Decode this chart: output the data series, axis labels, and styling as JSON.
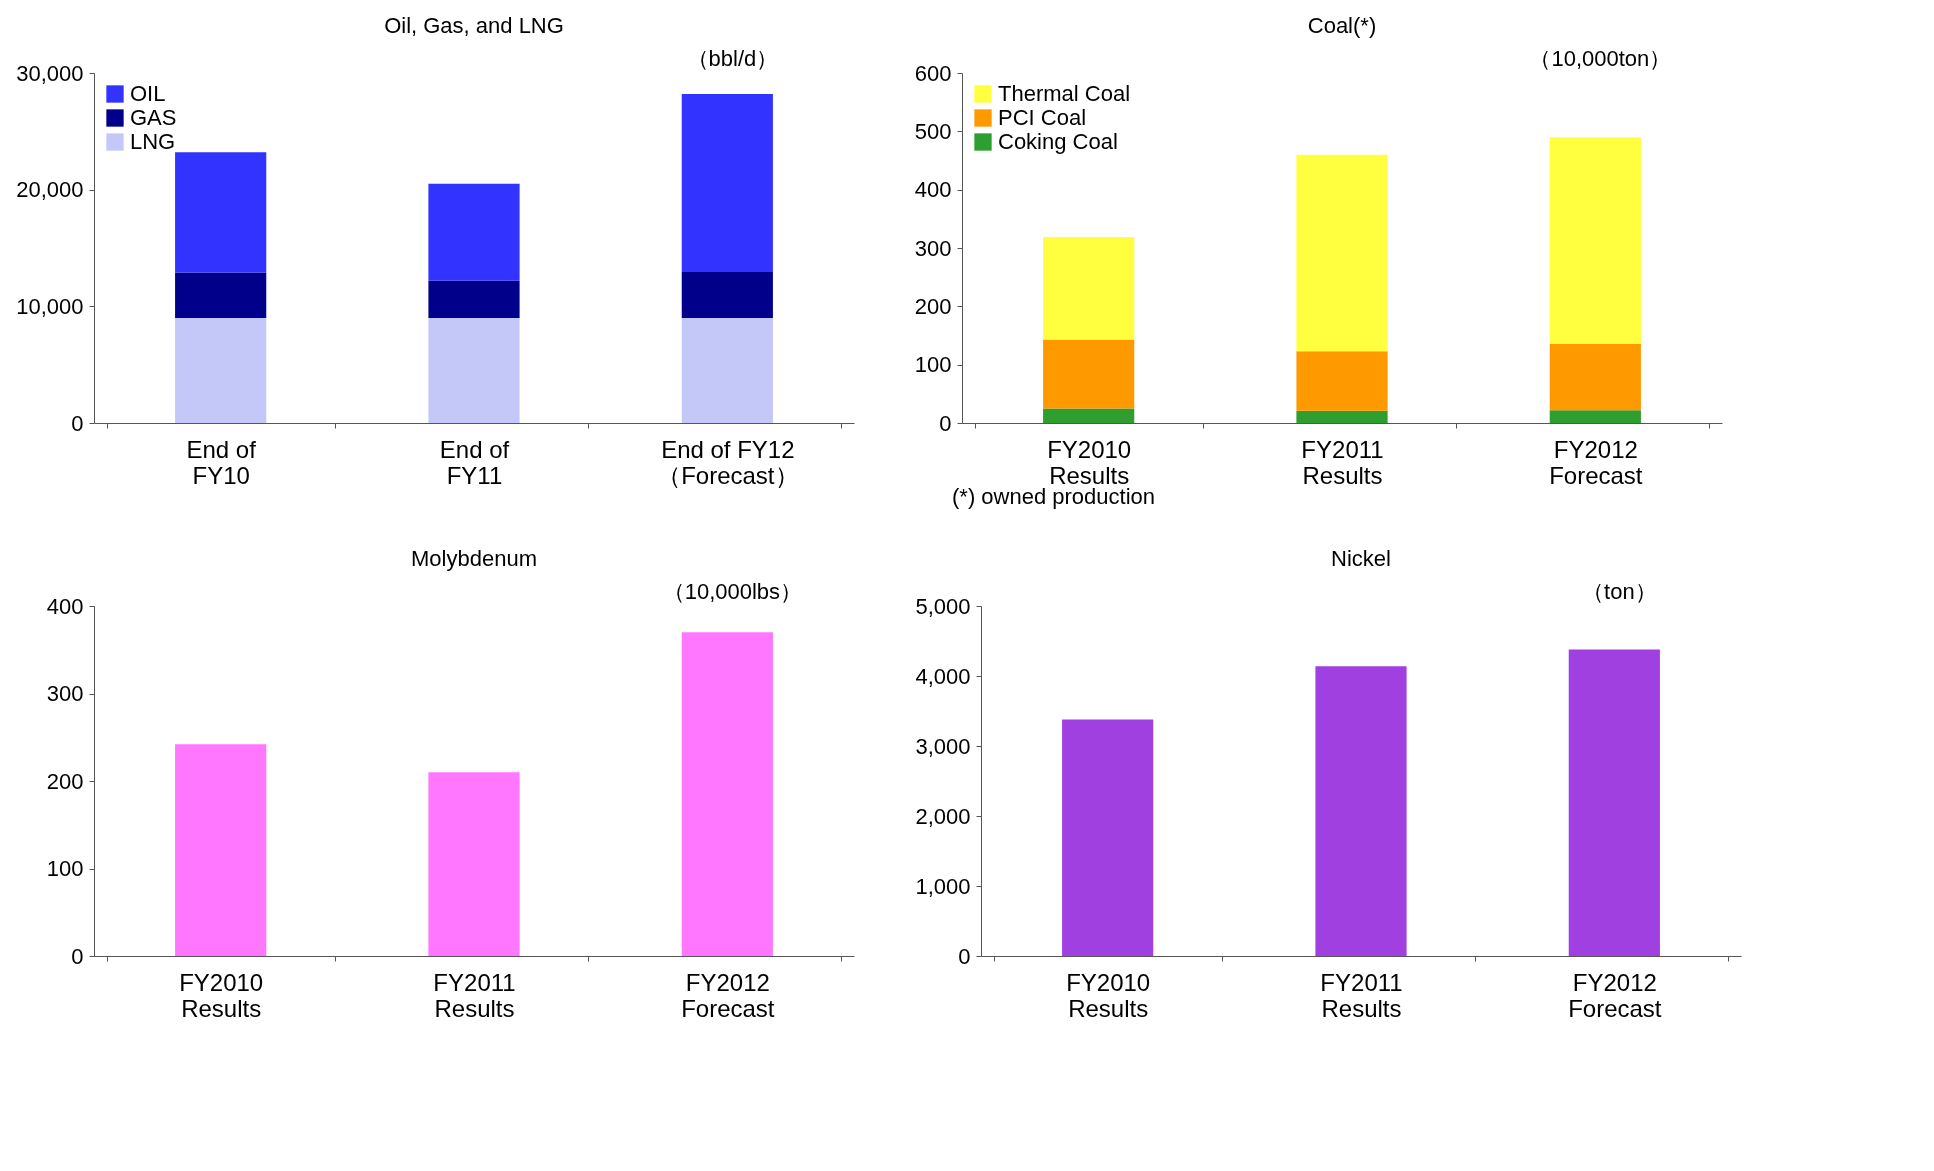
{
  "chart_data": [
    {
      "type": "bar",
      "title": "Oil, Gas, and LNG",
      "categories": [
        "End of\nFY10",
        "End of\nFY11",
        "End of FY12\n（Forecast）"
      ],
      "stacked": true,
      "legend": "top left",
      "ylim": [
        0,
        30000
      ],
      "yticks": [
        0,
        {
          "value": 10000,
          "label": "10,000"
        },
        {
          "value": 20000,
          "label": "20,000"
        },
        {
          "value": 30000,
          "label": "30,000"
        }
      ],
      "annotations": [
        "（bbl/d）"
      ],
      "series": [
        {
          "name": "LNG",
          "color": "#c4c8f8",
          "values": [
            9000,
            9000,
            9000
          ]
        },
        {
          "name": "GAS",
          "color": "#00008b",
          "values": [
            3900,
            3200,
            4000
          ]
        },
        {
          "name": "OIL",
          "color": "#3333ff",
          "values": [
            10300,
            8300,
            15200
          ]
        }
      ]
    },
    {
      "type": "bar",
      "title": "Coal(*)",
      "categories": [
        "FY2010\nResults",
        "FY2011\nResults",
        "FY2012\nForecast"
      ],
      "stacked": true,
      "legend": "top left",
      "ylim": [
        0,
        600
      ],
      "yticks": [
        0,
        100,
        200,
        300,
        400,
        500,
        600
      ],
      "annotations": [
        "（10,000ton）",
        "(*) owned production"
      ],
      "series": [
        {
          "name": "Coking Coal",
          "color": "#2e9e2e",
          "values": [
            25,
            21,
            22
          ]
        },
        {
          "name": "PCI Coal",
          "color": "#ff9900",
          "values": [
            118,
            102,
            114
          ]
        },
        {
          "name": "Thermal Coal",
          "color": "#ffff40",
          "values": [
            176,
            337,
            354
          ]
        }
      ]
    },
    {
      "type": "bar",
      "title": "Molybdenum",
      "categories": [
        "FY2010\nResults",
        "FY2011\nResults",
        "FY2012\nForecast"
      ],
      "ylim": [
        0,
        400
      ],
      "yticks": [
        0,
        100,
        200,
        300,
        400
      ],
      "annotations": [
        "（10,000lbs）"
      ],
      "color": "#ff77ff",
      "values": [
        242,
        210,
        370
      ]
    },
    {
      "type": "bar",
      "title": "Nickel",
      "categories": [
        "FY2010\nResults",
        "FY2011\nResults",
        "FY2012\nForecast"
      ],
      "ylim": [
        0,
        5000
      ],
      "yticks": [
        0,
        {
          "value": 1000,
          "label": "1,000"
        },
        {
          "value": 2000,
          "label": "2,000"
        },
        {
          "value": 3000,
          "label": "3,000"
        },
        {
          "value": 4000,
          "label": "4,000"
        },
        {
          "value": 5000,
          "label": "5,000"
        }
      ],
      "annotations": [
        "（ton）"
      ],
      "color": "#a040e0",
      "values": [
        3380,
        4140,
        4380
      ]
    }
  ]
}
